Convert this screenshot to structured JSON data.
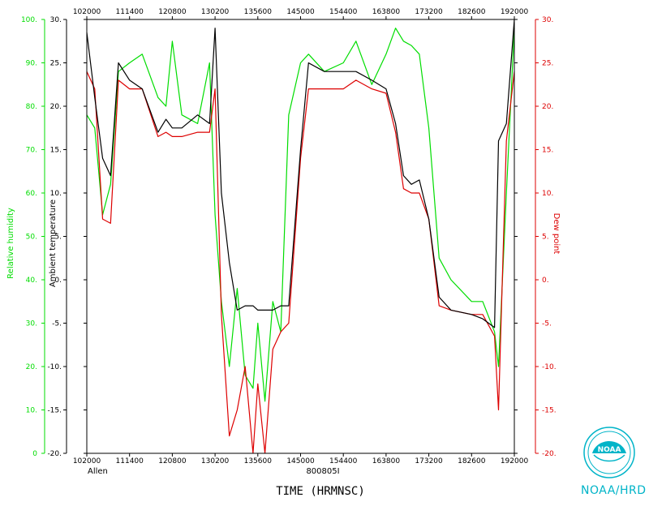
{
  "chart_data": {
    "type": "line",
    "storm": "Allen",
    "date": "800805I",
    "xlabel": "TIME (HRMNSC)",
    "x_ticks": [
      "102000",
      "111400",
      "120800",
      "130200",
      "135600",
      "145000",
      "154400",
      "163800",
      "173200",
      "182600",
      "192000"
    ],
    "xlim": [
      "102000",
      "192000"
    ],
    "axes": {
      "relative_humidity": {
        "label": "Relative humidity",
        "color": "#00dd00",
        "ylim": [
          0,
          100
        ],
        "ticks": [
          "0",
          "10.",
          "20.",
          "30.",
          "40.",
          "50.",
          "60.",
          "70.",
          "80.",
          "90.",
          "100."
        ]
      },
      "ambient_temperature": {
        "label": "Ambient temperature",
        "color": "#000000",
        "ylim": [
          -20,
          30
        ],
        "ticks": [
          "-20.",
          "-15.",
          "-10.",
          "-5.",
          "0.",
          "5.",
          "10.",
          "15.",
          "20.",
          "25.",
          "30."
        ]
      },
      "dew_point": {
        "label": "Dew point",
        "color": "#dd0000",
        "ylim": [
          -20,
          30
        ],
        "ticks": [
          "-20.",
          "-15.",
          "-10.",
          "-5.",
          "0.",
          "5.",
          "10.",
          "15.",
          "20.",
          "25.",
          "30."
        ]
      }
    },
    "series": [
      {
        "name": "Relative humidity",
        "axis": "relative_humidity",
        "color": "#00dd00",
        "x": [
          "102000",
          "103000",
          "104000",
          "105000",
          "110000",
          "111400",
          "113000",
          "115000",
          "120000",
          "120800",
          "122000",
          "124000",
          "125500",
          "130200",
          "131000",
          "132000",
          "133000",
          "134000",
          "135000",
          "135600",
          "140500",
          "141500",
          "142500",
          "143500",
          "145000",
          "150000",
          "152000",
          "154400",
          "160000",
          "162000",
          "163800",
          "165000",
          "170000",
          "171000",
          "172000",
          "173200",
          "174500",
          "180000",
          "182600",
          "184000",
          "185500",
          "190000",
          "191000",
          "192000"
        ],
        "y": [
          78,
          75,
          55,
          62,
          88,
          90,
          92,
          82,
          80,
          95,
          78,
          76,
          90,
          55,
          35,
          20,
          38,
          18,
          15,
          30,
          12,
          35,
          28,
          78,
          90,
          92,
          88,
          90,
          95,
          85,
          92,
          98,
          95,
          94,
          92,
          75,
          45,
          40,
          35,
          35,
          28,
          20,
          60,
          98
        ]
      },
      {
        "name": "Ambient temperature",
        "axis": "ambient_temperature",
        "color": "#000000",
        "x": [
          "102000",
          "103000",
          "104000",
          "105000",
          "110000",
          "111400",
          "113000",
          "115000",
          "120000",
          "120800",
          "122000",
          "124000",
          "125500",
          "130200",
          "131000",
          "132000",
          "133000",
          "134000",
          "135000",
          "135600",
          "140500",
          "141500",
          "142500",
          "143500",
          "145000",
          "150000",
          "152000",
          "154400",
          "160000",
          "162000",
          "163800",
          "165000",
          "170000",
          "171000",
          "172000",
          "173200",
          "174500",
          "180000",
          "182600",
          "184000",
          "185500",
          "190000",
          "191000",
          "192000"
        ],
        "y": [
          28.5,
          21,
          14,
          12,
          25,
          23,
          22,
          17,
          18.5,
          17.5,
          17.5,
          19,
          18,
          29,
          10,
          2,
          -3.5,
          -3,
          -3,
          -3.5,
          -3.5,
          -3.5,
          -3,
          -3,
          15,
          25,
          24,
          24,
          24,
          23,
          22,
          18,
          12,
          11,
          11.5,
          7,
          -2,
          -3.5,
          -4,
          -4.5,
          -5.5,
          16,
          18,
          30
        ]
      },
      {
        "name": "Dew point",
        "axis": "dew_point",
        "color": "#dd0000",
        "x": [
          "102000",
          "103000",
          "104000",
          "105000",
          "110000",
          "111400",
          "113000",
          "115000",
          "120000",
          "120800",
          "122000",
          "124000",
          "125500",
          "130200",
          "131000",
          "132000",
          "133000",
          "134000",
          "135000",
          "135600",
          "140500",
          "141500",
          "142500",
          "143500",
          "145000",
          "150000",
          "152000",
          "154400",
          "160000",
          "162000",
          "163800",
          "165000",
          "170000",
          "171000",
          "172000",
          "173200",
          "174500",
          "180000",
          "182600",
          "184000",
          "185500",
          "190000",
          "191000",
          "192000"
        ],
        "y": [
          24,
          22,
          7,
          6.5,
          23,
          22,
          22,
          16.5,
          17,
          16.5,
          16.5,
          17,
          17,
          22,
          -4,
          -18,
          -15,
          -10,
          -20,
          -12,
          -20,
          -8,
          -6,
          -5,
          14,
          22,
          22,
          22,
          23,
          22,
          21.5,
          17,
          10.5,
          10,
          10,
          7,
          -3,
          -3.5,
          -4,
          -4,
          -6.5,
          -15,
          16,
          24
        ]
      }
    ],
    "grid": false,
    "legend": "none"
  },
  "branding": {
    "agency": "NOAA/HRD",
    "logo_text": "NOAA"
  }
}
